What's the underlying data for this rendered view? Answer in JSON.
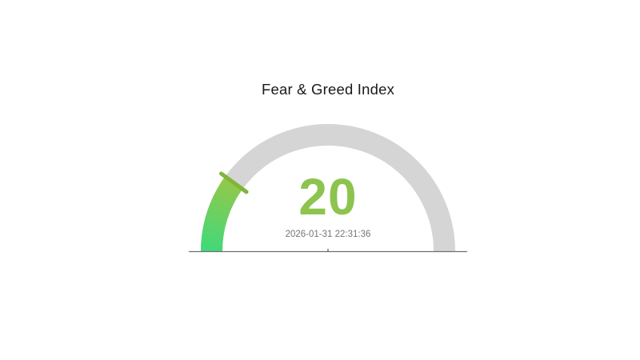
{
  "page": {
    "background": "#ffffff"
  },
  "chart_data": {
    "type": "gauge",
    "title": "Fear & Greed Index",
    "value": 20,
    "min": 0,
    "max": 100,
    "start_angle": 180,
    "end_angle": 0,
    "timestamp": "2026-01-31 22:31:36",
    "legend_position": "none",
    "grid": false,
    "colors": {
      "track": "#d5d5d5",
      "progress_gradient_start": "#41d97a",
      "progress_gradient_end": "#93c84a",
      "end_marker": "#7fb63a",
      "value_text": "#8cc44e",
      "timestamp_text": "#757575",
      "title_text": "#1a1a1a",
      "baseline": "#6f6f6f"
    }
  }
}
